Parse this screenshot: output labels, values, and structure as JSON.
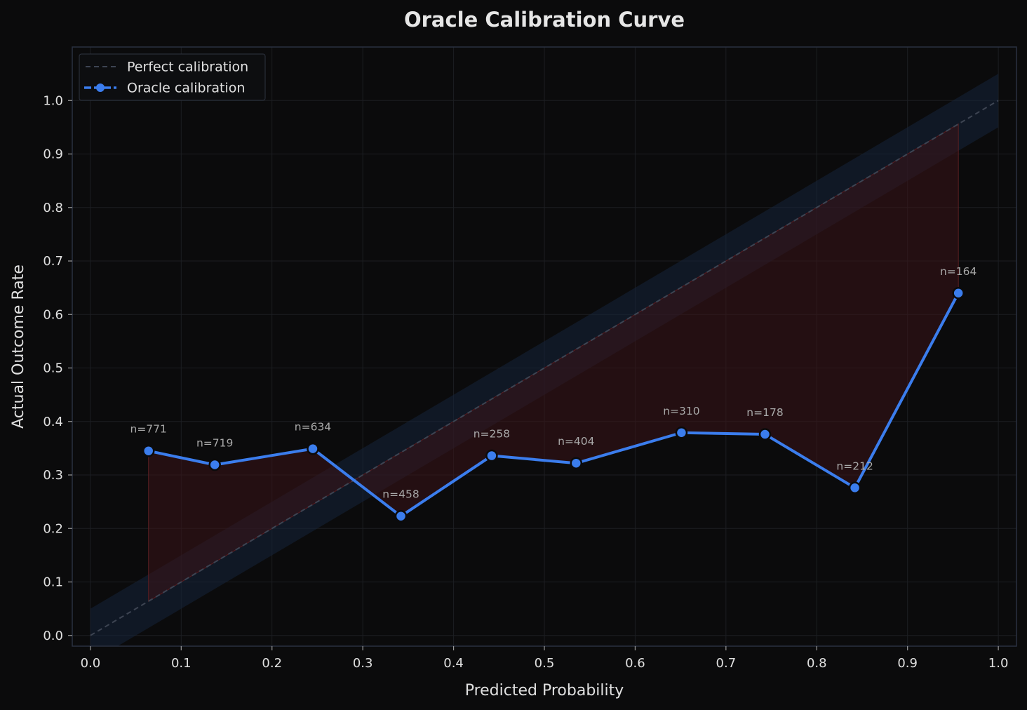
{
  "chart_data": {
    "type": "line",
    "title": "Oracle Calibration Curve",
    "xlabel": "Predicted Probability",
    "ylabel": "Actual Outcome Rate",
    "xlim": [
      -0.02,
      1.02
    ],
    "ylim": [
      -0.02,
      1.1
    ],
    "xticks": [
      0.0,
      0.1,
      0.2,
      0.3,
      0.4,
      0.5,
      0.6,
      0.7,
      0.8,
      0.9,
      1.0
    ],
    "xtick_labels": [
      "0.0",
      "0.1",
      "0.2",
      "0.3",
      "0.4",
      "0.5",
      "0.6",
      "0.7",
      "0.8",
      "0.9",
      "1.0"
    ],
    "yticks": [
      0.0,
      0.1,
      0.2,
      0.3,
      0.4,
      0.5,
      0.6,
      0.7,
      0.8,
      0.9,
      1.0
    ],
    "ytick_labels": [
      "0.0",
      "0.1",
      "0.2",
      "0.3",
      "0.4",
      "0.5",
      "0.6",
      "0.7",
      "0.8",
      "0.9",
      "1.0"
    ],
    "grid": true,
    "legend_position": "top-left",
    "legend": [
      "Perfect calibration",
      "Oracle calibration"
    ],
    "perfect_line": {
      "name": "Perfect calibration",
      "x": [
        0,
        1
      ],
      "y": [
        0,
        1
      ],
      "band": 0.05
    },
    "series": [
      {
        "name": "Oracle calibration",
        "x": [
          0.064,
          0.137,
          0.245,
          0.342,
          0.442,
          0.535,
          0.651,
          0.743,
          0.842,
          0.956
        ],
        "y": [
          0.345,
          0.319,
          0.349,
          0.223,
          0.336,
          0.322,
          0.379,
          0.376,
          0.276,
          0.64
        ],
        "counts": [
          "n=771",
          "n=719",
          "n=634",
          "n=458",
          "n=258",
          "n=404",
          "n=310",
          "n=178",
          "n=212",
          "n=164"
        ]
      }
    ],
    "colors": {
      "background": "#0b0b0c",
      "line": "#3b7ded",
      "marker_edge": "#0b0b0c",
      "perfect": "#3d4452",
      "band": "#16243a",
      "gap_fill": "#3a1417",
      "gap_edge": "#5a1e22",
      "grid": "#1c1e22",
      "frame": "#2a3140"
    }
  }
}
